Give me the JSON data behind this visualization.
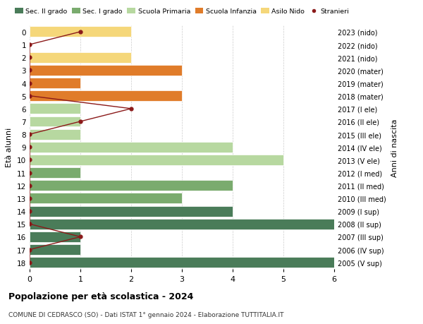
{
  "ages": [
    0,
    1,
    2,
    3,
    4,
    5,
    6,
    7,
    8,
    9,
    10,
    11,
    12,
    13,
    14,
    15,
    16,
    17,
    18
  ],
  "labels_right": [
    "2023 (nido)",
    "2022 (nido)",
    "2021 (nido)",
    "2020 (mater)",
    "2019 (mater)",
    "2018 (mater)",
    "2017 (I ele)",
    "2016 (II ele)",
    "2015 (III ele)",
    "2014 (IV ele)",
    "2013 (V ele)",
    "2012 (I med)",
    "2011 (II med)",
    "2010 (III med)",
    "2009 (I sup)",
    "2008 (II sup)",
    "2007 (III sup)",
    "2006 (IV sup)",
    "2005 (V sup)"
  ],
  "bar_values": [
    2,
    0,
    2,
    3,
    1,
    3,
    1,
    1,
    1,
    4,
    5,
    1,
    4,
    3,
    4,
    6,
    1,
    1,
    6
  ],
  "bar_colors": [
    "#f5d77a",
    "#f5d77a",
    "#f5d77a",
    "#e07c2a",
    "#e07c2a",
    "#e07c2a",
    "#b7d8a0",
    "#b7d8a0",
    "#b7d8a0",
    "#b7d8a0",
    "#b7d8a0",
    "#7aab6e",
    "#7aab6e",
    "#7aab6e",
    "#4a7c59",
    "#4a7c59",
    "#4a7c59",
    "#4a7c59",
    "#4a7c59"
  ],
  "stranieri_values": [
    1,
    0,
    0,
    0,
    0,
    0,
    2,
    1,
    0,
    0,
    0,
    0,
    0,
    0,
    0,
    0,
    1,
    0,
    0
  ],
  "stranieri_color": "#8b1a1a",
  "title": "Popolazione per età scolastica - 2024",
  "subtitle": "COMUNE DI CEDRASCO (SO) - Dati ISTAT 1° gennaio 2024 - Elaborazione TUTTITALIA.IT",
  "ylabel_left": "Età alunni",
  "ylabel_right": "Anni di nascita",
  "xlim": [
    0,
    6
  ],
  "legend_labels": [
    "Sec. II grado",
    "Sec. I grado",
    "Scuola Primaria",
    "Scuola Infanzia",
    "Asilo Nido",
    "Stranieri"
  ],
  "legend_colors": [
    "#4a7c59",
    "#7aab6e",
    "#b7d8a0",
    "#e07c2a",
    "#f5d77a",
    "#8b1a1a"
  ],
  "bar_height": 0.82,
  "background_color": "#ffffff",
  "grid_color": "#cccccc"
}
